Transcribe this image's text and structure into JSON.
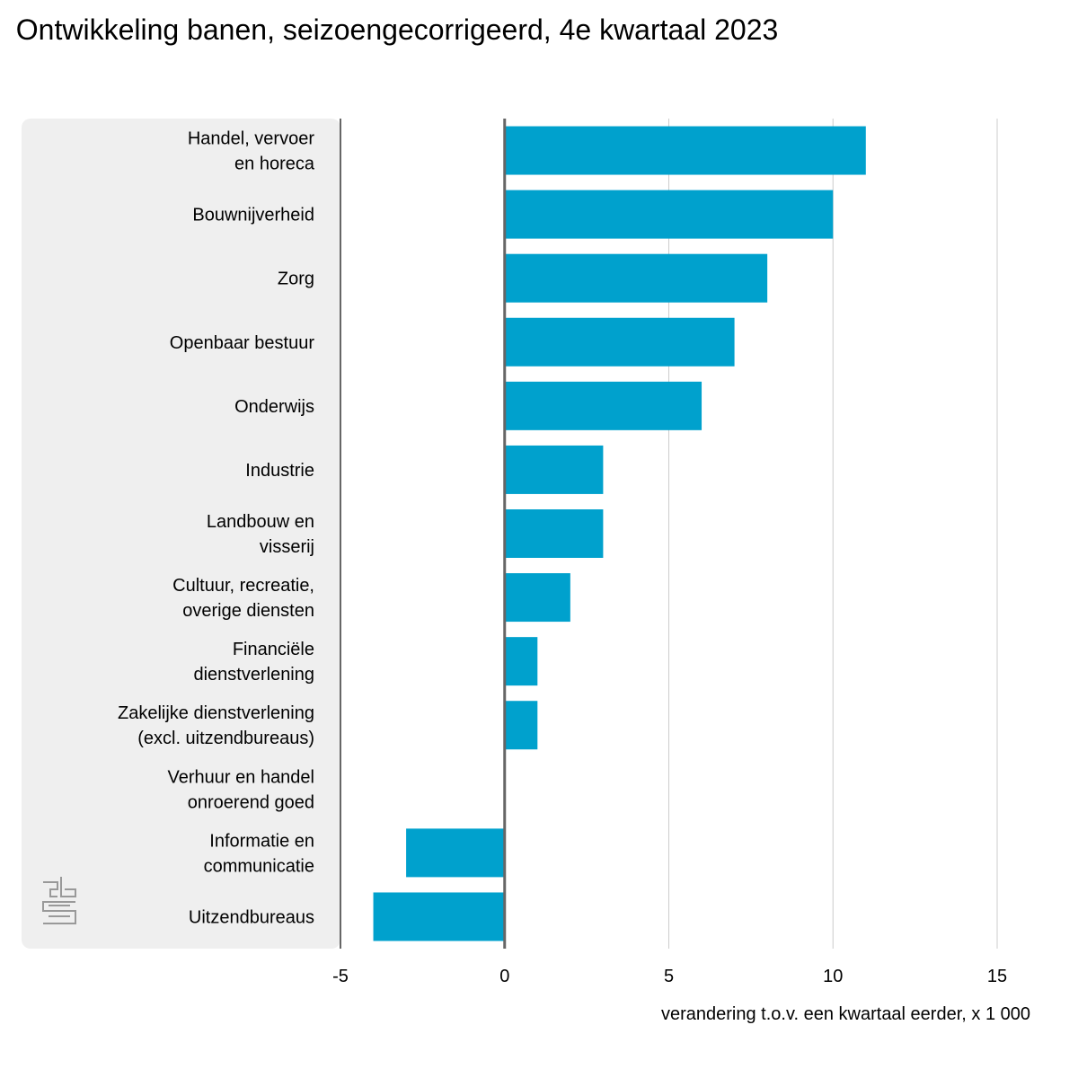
{
  "title": "  Ontwikkeling banen, seizoengecorrigeerd, 4e kwartaal 2023",
  "chart_data": {
    "type": "bar",
    "orientation": "horizontal",
    "categories": [
      [
        "Handel, vervoer",
        "en horeca"
      ],
      [
        "Bouwnijverheid"
      ],
      [
        "Zorg"
      ],
      [
        "Openbaar bestuur"
      ],
      [
        "Onderwijs"
      ],
      [
        "Industrie"
      ],
      [
        "Landbouw en",
        "visserij"
      ],
      [
        "Cultuur, recreatie,",
        "overige diensten"
      ],
      [
        "Financiële",
        "dienstverlening"
      ],
      [
        "Zakelijke dienstverlening",
        "(excl. uitzendbureaus)"
      ],
      [
        "Verhuur en handel",
        "onroerend goed"
      ],
      [
        "Informatie en",
        "communicatie"
      ],
      [
        "Uitzendbureaus"
      ]
    ],
    "values": [
      11,
      10,
      8,
      7,
      6,
      3,
      3,
      2,
      1,
      1,
      0,
      -3,
      -4
    ],
    "xlabel": "verandering t.o.v. een kwartaal eerder, x 1 000",
    "ylabel": "",
    "xlim": [
      -5,
      15
    ],
    "xticks": [
      -5,
      0,
      5,
      10,
      15
    ],
    "grid": "vertical",
    "colors": {
      "bar": "#00a1cd",
      "label_panel": "#efefef",
      "grid": "#cccccc",
      "axis": "#666666",
      "logo": "#999999"
    }
  }
}
